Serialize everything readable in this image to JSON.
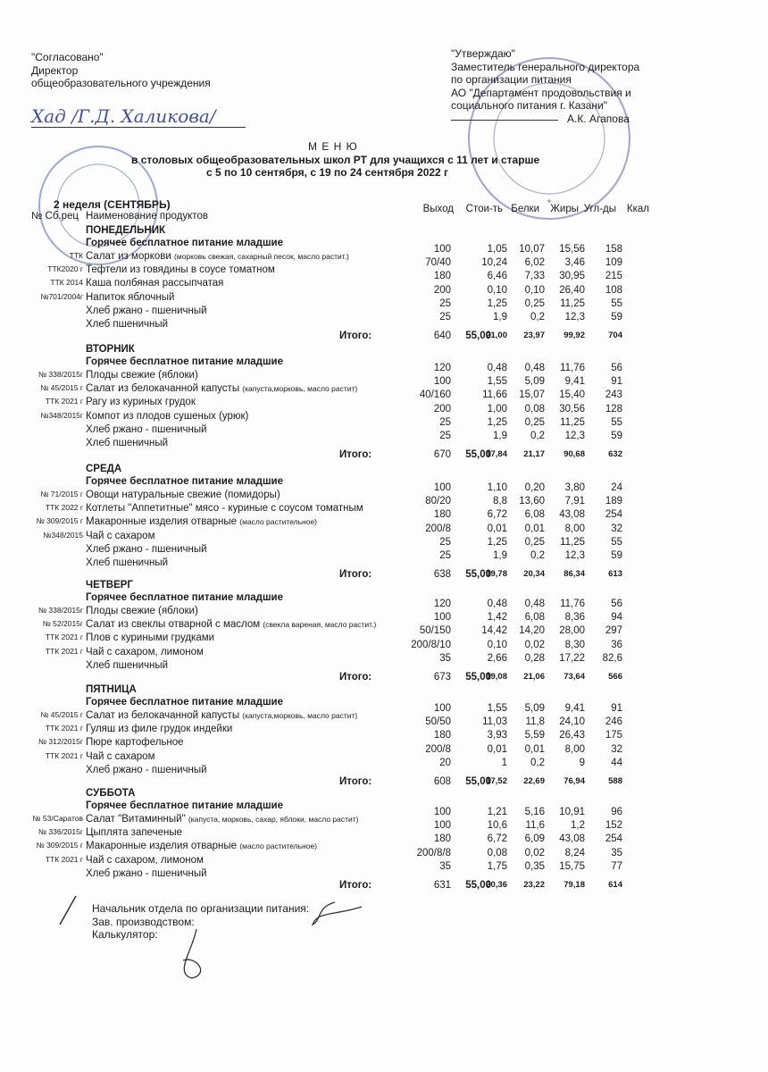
{
  "approval_left": {
    "title": "\"Согласовано\"",
    "position": "Директор",
    "org": "общеобразовательного учреждения",
    "signature": "Хад /Г.Д. Халикова/"
  },
  "approval_right": {
    "title": "\"Утверждаю\"",
    "line1": "Заместитель генерального директора",
    "line2": "по организации питания",
    "line3": "АО  \"Департамент продовольствия  и",
    "line4": "социального питания г. Казани\"",
    "signer": "А.К. Агапова"
  },
  "stamp_right_text": "Департамент продовольствия и социального питания Казань",
  "title": "М Е Н Ю",
  "subtitle": "в столовых общеобразовательных школ РТ для учащихся с 11 лет и старше",
  "dates": "с  5  по  10 сентября, с  19 по 24 сентября  2022 г",
  "week": "2 неделя (СЕНТЯБРЬ)",
  "columns": {
    "code": "№ Сб.рец",
    "name": "Наименование продуктов",
    "out": "Выход",
    "cost": "Стои-ть",
    "b": "Белки",
    "f": "Жиры",
    "c": "Угл-ды",
    "k": "Ккал"
  },
  "total_label": "Итого:",
  "days": [
    {
      "day": "ПОНЕДЕЛЬНИК",
      "section": "Горячее бесплатное питание младшие",
      "items": [
        [
          "ТТК",
          "Салат из моркови",
          "(морковь свежая, сахарный песок, масло растит.)",
          "100",
          "1,05",
          "10,07",
          "15,56",
          "158"
        ],
        [
          "ТТК2020 г",
          "Тефтели из говядины в соусе томатном",
          "",
          "70/40",
          "10,24",
          "6,02",
          "3,46",
          "109"
        ],
        [
          "ТТК 2014",
          "Каша полбяная рассыпчатая",
          "",
          "180",
          "6,46",
          "7,33",
          "30,95",
          "215"
        ],
        [
          "№701/2004г",
          "Напиток яблочный",
          "",
          "200",
          "0,10",
          "0,10",
          "26,40",
          "108"
        ],
        [
          "",
          "Хлеб ржано - пшеничный",
          "",
          "25",
          "1,25",
          "0,25",
          "11,25",
          "55"
        ],
        [
          "",
          "Хлеб пшеничный",
          "",
          "25",
          "1,9",
          "0,2",
          "12,3",
          "59"
        ]
      ],
      "total": [
        "640",
        "55,00",
        "21,00",
        "23,97",
        "99,92",
        "704"
      ]
    },
    {
      "day": "ВТОРНИК",
      "section": "Горячее бесплатное питание младшие",
      "items": [
        [
          "№ 338/2015г",
          "Плоды свежие (яблоки)",
          "",
          "120",
          "0,48",
          "0,48",
          "11,76",
          "56"
        ],
        [
          "№ 45/2015 г",
          "Салат из белокачанной капусты",
          "(капуста,морковь, масло растит)",
          "100",
          "1,55",
          "5,09",
          "9,41",
          "91"
        ],
        [
          "ТТК 2021 г",
          "Рагу из куриных грудок",
          "",
          "40/160",
          "11,66",
          "15,07",
          "15,40",
          "243"
        ],
        [
          "№348/2015г",
          "Компот из плодов сушеных (урюк)",
          "",
          "200",
          "1,00",
          "0,08",
          "30,56",
          "128"
        ],
        [
          "",
          "Хлеб ржано - пшеничный",
          "",
          "25",
          "1,25",
          "0,25",
          "11,25",
          "55"
        ],
        [
          "",
          "Хлеб пшеничный",
          "",
          "25",
          "1,9",
          "0,2",
          "12,3",
          "59"
        ]
      ],
      "total": [
        "670",
        "55,00",
        "17,84",
        "21,17",
        "90,68",
        "632"
      ]
    },
    {
      "day": "СРЕДА",
      "section": "Горячее бесплатное питание младшие",
      "items": [
        [
          "№ 71/2015 г",
          "Овощи натуральные свежие (помидоры)",
          "",
          "100",
          "1,10",
          "0,20",
          "3,80",
          "24"
        ],
        [
          "ТТК 2022 г",
          "Котлеты \"Аппетитные\" мясо - куриные с соусом томатным",
          "",
          "80/20",
          "8,8",
          "13,60",
          "7,91",
          "189"
        ],
        [
          "№ 309/2015 г",
          "Макаронные изделия отварные",
          "(масло растительное)",
          "180",
          "6,72",
          "6,08",
          "43,08",
          "254"
        ],
        [
          "№348/2015",
          "Чай с сахаром",
          "",
          "200/8",
          "0,01",
          "0,01",
          "8,00",
          "32"
        ],
        [
          "",
          "Хлеб ржано - пшеничный",
          "",
          "25",
          "1,25",
          "0,25",
          "11,25",
          "55"
        ],
        [
          "",
          "Хлеб пшеничный",
          "",
          "25",
          "1,9",
          "0,2",
          "12,3",
          "59"
        ]
      ],
      "total": [
        "638",
        "55,00",
        "19,78",
        "20,34",
        "86,34",
        "613"
      ]
    },
    {
      "day": "ЧЕТВЕРГ",
      "section": "Горячее бесплатное питание младшие",
      "items": [
        [
          "№ 338/2015г",
          "Плоды свежие (яблоки)",
          "",
          "120",
          "0,48",
          "0,48",
          "11,76",
          "56"
        ],
        [
          "№ 52/2015г",
          "Салат из свеклы отварной с маслом",
          "(свекла вареная,  масло растит.)",
          "100",
          "1,42",
          "6,08",
          "8,36",
          "94"
        ],
        [
          "ТТК 2021 г",
          "Плов с куриными грудками",
          "",
          "50/150",
          "14,42",
          "14,20",
          "28,00",
          "297"
        ],
        [
          "ТТК 2021 г",
          "Чай с сахаром, лимоном",
          "",
          "200/8/10",
          "0,10",
          "0,02",
          "8,30",
          "36"
        ],
        [
          "",
          "Хлеб пшеничный",
          "",
          "35",
          "2,66",
          "0,28",
          "17,22",
          "82,6"
        ]
      ],
      "total": [
        "673",
        "55,00",
        "19,08",
        "21,06",
        "73,64",
        "566"
      ]
    },
    {
      "day": "ПЯТНИЦА",
      "section": "Горячее бесплатное питание младшие",
      "items": [
        [
          "№ 45/2015 г",
          "Салат из белокачанной капусты",
          "(капуста,морковь, масло растит)",
          "100",
          "1,55",
          "5,09",
          "9,41",
          "91"
        ],
        [
          "ТТК 2021 г",
          "Гуляш из филе грудок индейки",
          "",
          "50/50",
          "11,03",
          "11,8",
          "24,10",
          "246"
        ],
        [
          "№ 312/2015г",
          "Пюре картофельное",
          "",
          "180",
          "3,93",
          "5,59",
          "26,43",
          "175"
        ],
        [
          "ТТК 2021 г",
          "Чай с сахаром",
          "",
          "200/8",
          "0,01",
          "0,01",
          "8,00",
          "32"
        ],
        [
          "",
          "Хлеб ржано - пшеничный",
          "",
          "20",
          "1",
          "0,2",
          "9",
          "44"
        ]
      ],
      "total": [
        "608",
        "55,00",
        "17,52",
        "22,69",
        "76,94",
        "588"
      ]
    },
    {
      "day": "СУББОТА",
      "section": "Горячее бесплатное питание младшие",
      "items": [
        [
          "№ 53/Саратов",
          "Салат \"Витаминный\"",
          "(капуста, морковь, сахар, яблоки, масло растит)",
          "100",
          "1,21",
          "5,16",
          "10,91",
          "96"
        ],
        [
          "№ 336/2015г",
          "Цыплята запеченые",
          "",
          "100",
          "10,6",
          "11,6",
          "1,2",
          "152"
        ],
        [
          "№ 309/2015 г",
          "Макаронные изделия отварные",
          "(масло растительное)",
          "180",
          "6,72",
          "6,09",
          "43,08",
          "254"
        ],
        [
          "ТТК 2021 г",
          "Чай с сахаром, лимоном",
          "",
          "200/8/8",
          "0,08",
          "0,02",
          "8,24",
          "35"
        ],
        [
          "",
          "Хлеб ржано - пшеничный",
          "",
          "35",
          "1,75",
          "0,35",
          "15,75",
          "77"
        ]
      ],
      "total": [
        "631",
        "55,00",
        "20,36",
        "23,22",
        "79,18",
        "614"
      ]
    }
  ],
  "footer": {
    "head": "Начальник отдела по организации питания:",
    "production": "Зав. производством:",
    "calc": "Калькулятор:"
  }
}
